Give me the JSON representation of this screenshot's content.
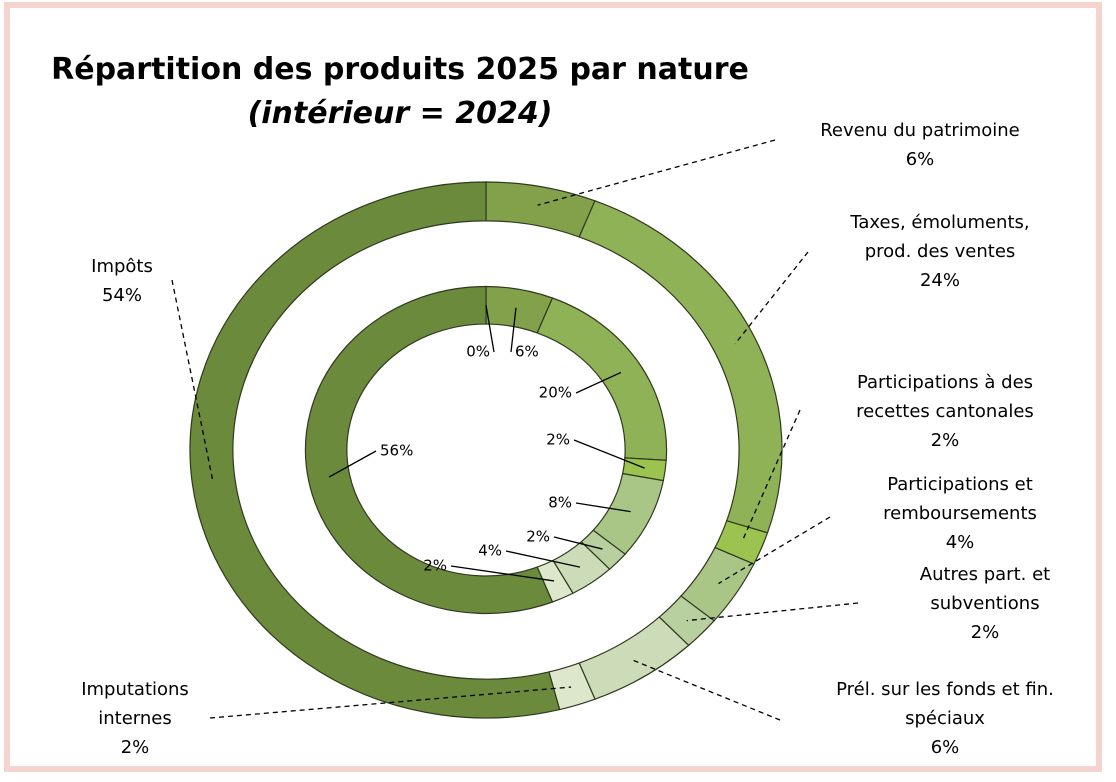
{
  "chart_data": {
    "type": "donut",
    "title": "Répartition des produits 2025 par nature",
    "title_note": "(intérieur = 2024)",
    "categories": [
      null,
      "Revenu du patrimoine",
      "Taxes, émoluments, prod. des ventes",
      "Participations à des recettes cantonales",
      "Participations et remboursements",
      "Autres part. et subventions",
      "Prél. sur les fonds et fin. spéciaux",
      "Imputations internes",
      "Impôts"
    ],
    "colors": [
      "#6b8a3c",
      "#82a14a",
      "#8fb256",
      "#9cc24f",
      "#a9c687",
      "#b8d0a0",
      "#cddcb8",
      "#dce7cb",
      "#6b8a3c"
    ],
    "series": [
      {
        "values": [
          0,
          6,
          24,
          2,
          4,
          2,
          6,
          2,
          54
        ],
        "value_labels": [
          null,
          "6%",
          "24%",
          "2%",
          "4%",
          "2%",
          "6%",
          "2%",
          "54%"
        ]
      },
      {
        "values": [
          0,
          6,
          20,
          2,
          8,
          2,
          4,
          2,
          56
        ],
        "value_labels": [
          "0%",
          "6%",
          "20%",
          "2%",
          "8%",
          "2%",
          "4%",
          "2%",
          "56%"
        ]
      }
    ]
  }
}
